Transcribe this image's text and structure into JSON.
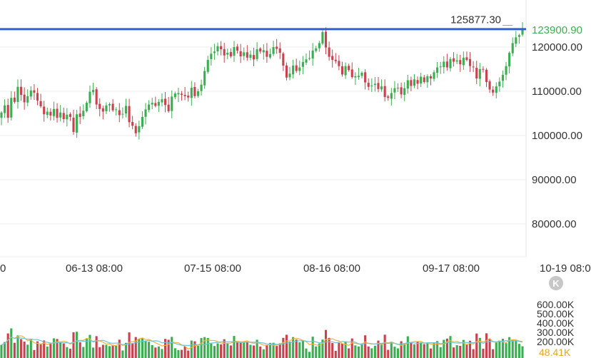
{
  "chart_data": {
    "type": "candlestick",
    "x_tick_labels": [
      "0",
      "06-13 08:00",
      "07-15 08:00",
      "08-16 08:00",
      "09-17 08:00",
      "10-19 08:0"
    ],
    "y_tick_labels": [
      "120000.00",
      "110000.00",
      "100000.00",
      "90000.00",
      "80000.00"
    ],
    "ylim": [
      75000,
      131000
    ],
    "grid": true,
    "last_price": 123900.9,
    "last_price_label": "123900.90",
    "high_marker": 125877.3,
    "high_marker_label": "125877.30",
    "candles_close": [
      105200,
      106800,
      104000,
      108500,
      107600,
      111000,
      109200,
      107500,
      108900,
      110200,
      109700,
      107900,
      106600,
      104800,
      105400,
      104500,
      106000,
      104000,
      105200,
      103700,
      104700,
      104200,
      100800,
      104800,
      104200,
      105600,
      107400,
      109900,
      110300,
      107000,
      106000,
      105400,
      106800,
      107100,
      105700,
      105900,
      104600,
      104900,
      106700,
      103000,
      102200,
      100500,
      102100,
      104200,
      105900,
      107000,
      107400,
      106700,
      107600,
      108200,
      106900,
      105500,
      108800,
      109500,
      109600,
      109200,
      108900,
      108600,
      110800,
      108900,
      110000,
      111500,
      114600,
      117100,
      118500,
      119000,
      120200,
      119500,
      118100,
      118700,
      117900,
      120000,
      119200,
      117900,
      118800,
      117600,
      118300,
      117200,
      119500,
      119000,
      119300,
      117800,
      118400,
      120000,
      119600,
      118700,
      115800,
      113100,
      114000,
      115800,
      114600,
      115400,
      116600,
      117200,
      117500,
      119200,
      119700,
      120900,
      123400,
      119900,
      117800,
      117100,
      116800,
      115700,
      113800,
      115700,
      114800,
      113200,
      113400,
      113500,
      114200,
      112000,
      111000,
      111300,
      111700,
      110500,
      111100,
      108700,
      108500,
      109600,
      110700,
      110800,
      109300,
      110700,
      112500,
      111200,
      112700,
      111700,
      113300,
      112100,
      113400,
      112900,
      114300,
      115400,
      115600,
      116700,
      115400,
      117300,
      116700,
      117000,
      116100,
      117600,
      117100,
      115700,
      115500,
      112900,
      115000,
      114900,
      112100,
      110400,
      109700,
      111100,
      112200,
      113700,
      115700,
      118700,
      120900,
      122200,
      122700,
      123900.9
    ],
    "volume_ylim": [
      0,
      700000
    ],
    "volume_tick_labels": [
      "600.00K",
      "500.00K",
      "400.00K",
      "300.00K",
      "200.00K"
    ],
    "last_volume_label": "48.41K",
    "colors": {
      "up": "#3cae52",
      "down": "#c9434f",
      "price_line": "#2f5fd0",
      "last_price_text": "#3cae52",
      "high_marker_text": "#333333",
      "ma_line_1": "#f3b33c",
      "ma_line_2": "#6cc3d6",
      "last_volume_text": "#e3a629",
      "axis_text": "#333333",
      "grid": "#eeeeee",
      "k_badge": "#c7c7c7"
    },
    "k_badge_icon": "k-icon"
  }
}
